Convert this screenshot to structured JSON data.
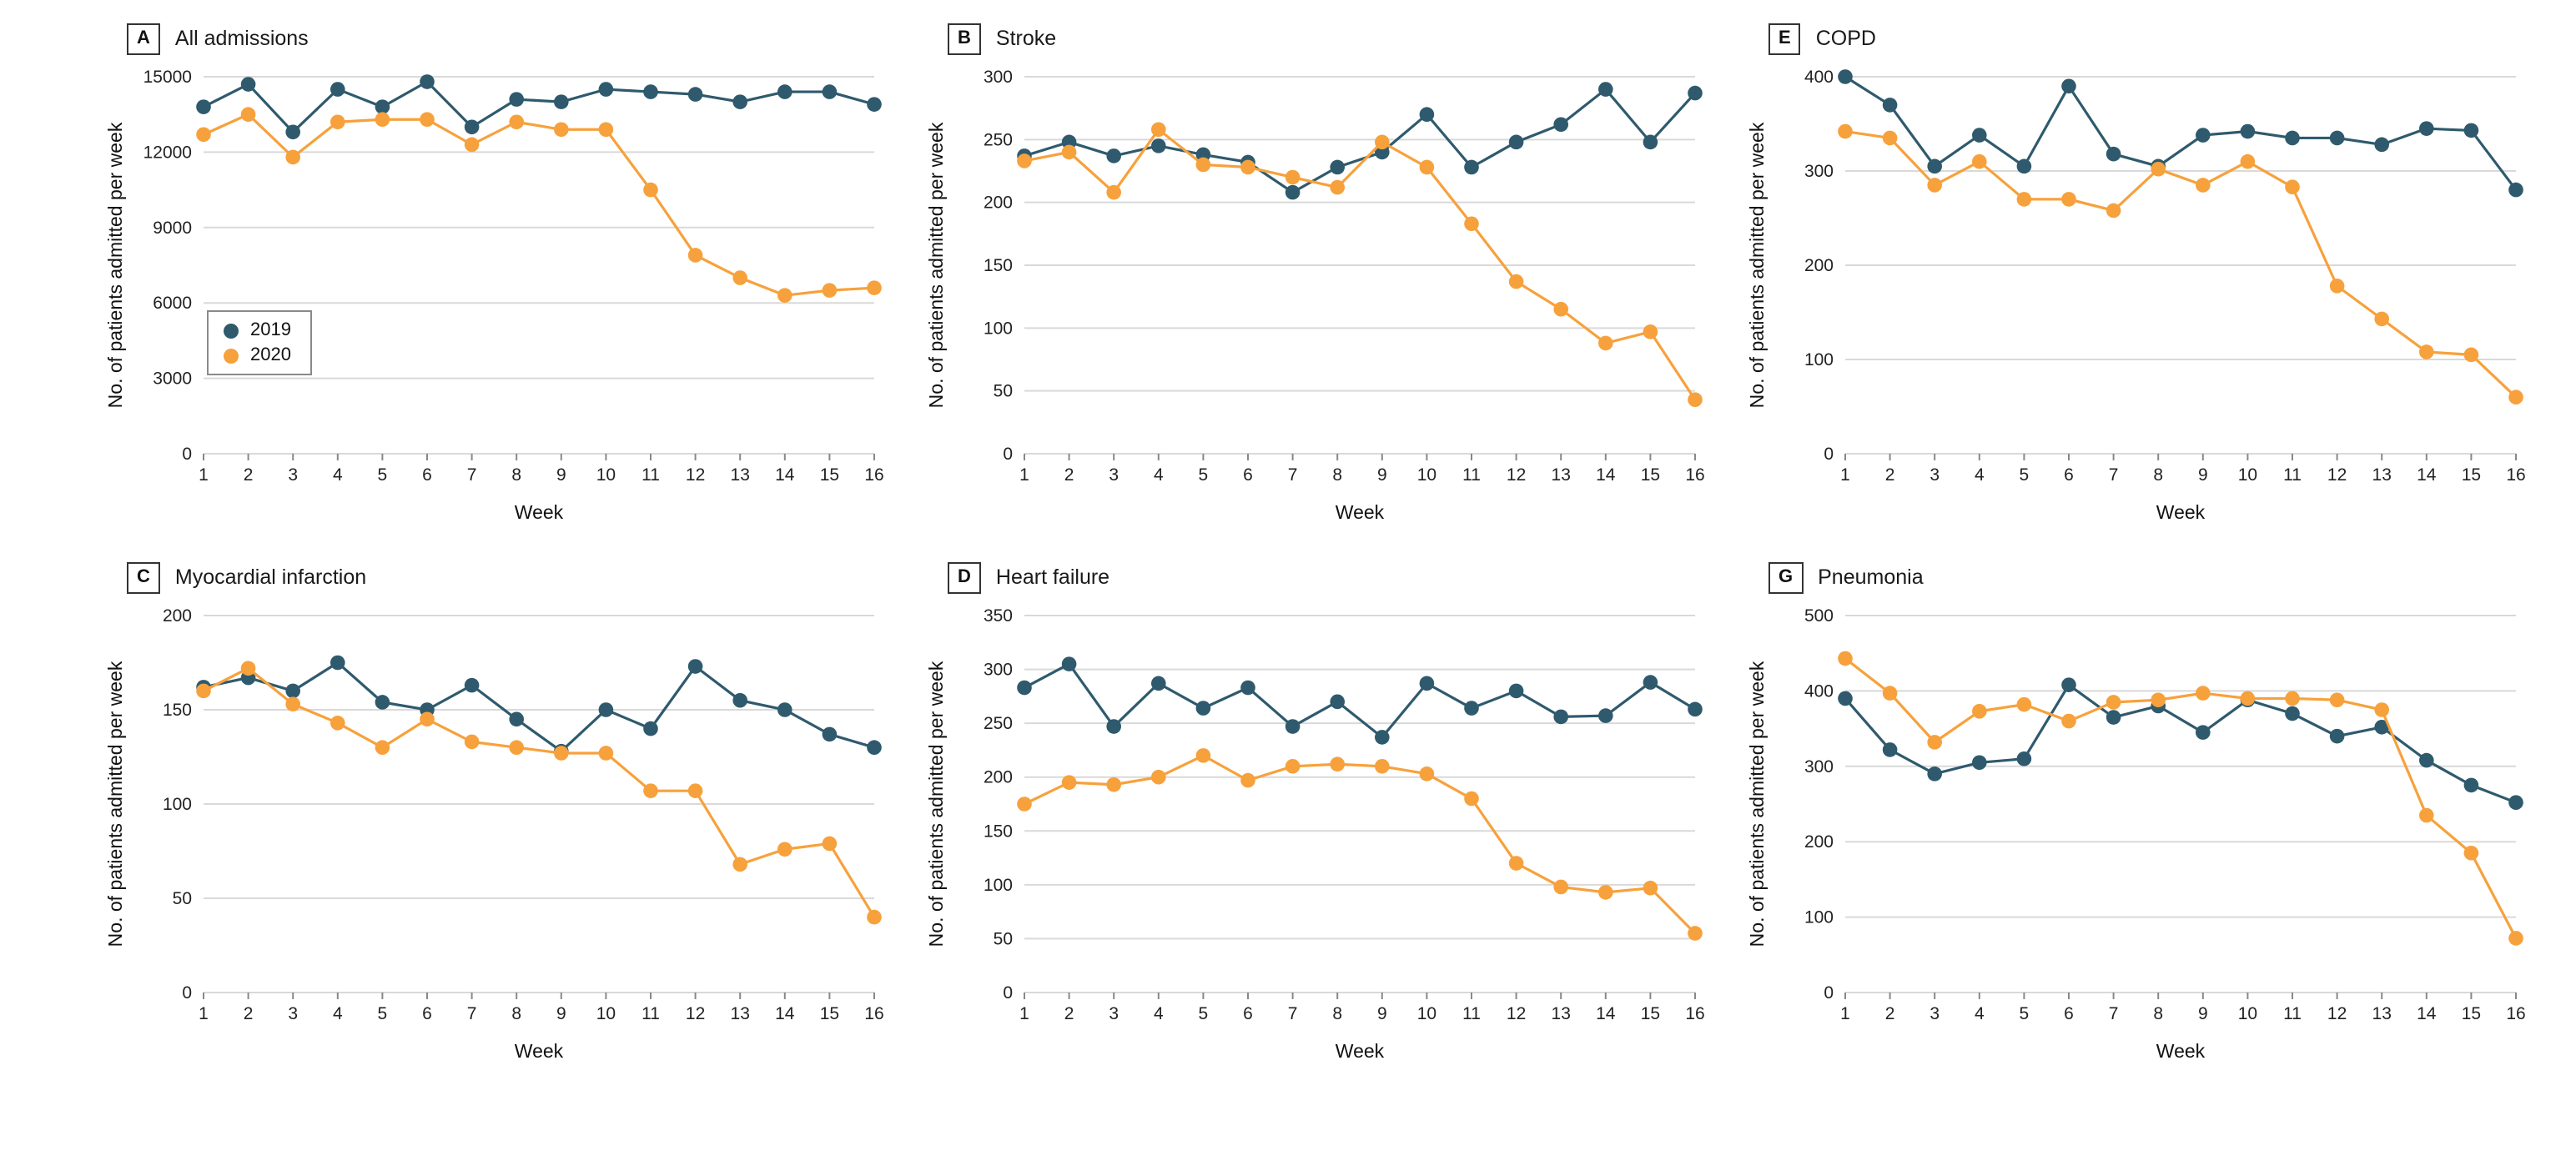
{
  "figure": {
    "x_label": "Week",
    "y_label": "No. of patients admitted per week",
    "colors": {
      "2019": "#2F5A6D",
      "2020": "#F7A13C"
    },
    "grid_color": "#d9d9d9",
    "legend": {
      "entries": [
        {
          "label": "2019"
        },
        {
          "label": "2020"
        }
      ],
      "position": "inside-left panel A"
    }
  },
  "chart_data": [
    {
      "type": "line",
      "panel": "A",
      "title": "All admissions",
      "x": [
        1,
        2,
        3,
        4,
        5,
        6,
        7,
        8,
        9,
        10,
        11,
        12,
        13,
        14,
        15,
        16
      ],
      "xlabel": "Week",
      "ylabel": "No. of patients admitted per week",
      "ylim": [
        0,
        15000
      ],
      "yticks": [
        0,
        3000,
        6000,
        9000,
        12000,
        15000
      ],
      "legend": true,
      "series": [
        {
          "name": "2019",
          "values": [
            13800,
            14700,
            12800,
            14500,
            13800,
            14800,
            13000,
            14100,
            14000,
            14500,
            14400,
            14300,
            14000,
            14400,
            14400,
            13900
          ]
        },
        {
          "name": "2020",
          "values": [
            12700,
            13500,
            11800,
            13200,
            13300,
            13300,
            12300,
            13200,
            12900,
            12900,
            10500,
            7900,
            7000,
            6300,
            6500,
            6600
          ]
        }
      ]
    },
    {
      "type": "line",
      "panel": "B",
      "title": "Stroke",
      "x": [
        1,
        2,
        3,
        4,
        5,
        6,
        7,
        8,
        9,
        10,
        11,
        12,
        13,
        14,
        15,
        16
      ],
      "xlabel": "Week",
      "ylabel": "No. of patients admitted per week",
      "ylim": [
        0,
        300
      ],
      "yticks": [
        0,
        50,
        100,
        150,
        200,
        250,
        300
      ],
      "legend": false,
      "series": [
        {
          "name": "2019",
          "values": [
            237,
            248,
            237,
            245,
            238,
            232,
            208,
            228,
            240,
            270,
            228,
            248,
            262,
            290,
            248,
            287
          ]
        },
        {
          "name": "2020",
          "values": [
            233,
            240,
            208,
            258,
            230,
            228,
            220,
            212,
            248,
            228,
            183,
            137,
            115,
            88,
            97,
            43
          ]
        }
      ]
    },
    {
      "type": "line",
      "panel": "E",
      "title": "COPD",
      "x": [
        1,
        2,
        3,
        4,
        5,
        6,
        7,
        8,
        9,
        10,
        11,
        12,
        13,
        14,
        15,
        16
      ],
      "xlabel": "Week",
      "ylabel": "No. of patients admitted per week",
      "ylim": [
        0,
        400
      ],
      "yticks": [
        0,
        100,
        200,
        300,
        400
      ],
      "legend": false,
      "series": [
        {
          "name": "2019",
          "values": [
            400,
            370,
            305,
            338,
            305,
            390,
            318,
            305,
            338,
            342,
            335,
            335,
            328,
            345,
            343,
            280
          ]
        },
        {
          "name": "2020",
          "values": [
            342,
            335,
            285,
            310,
            270,
            270,
            258,
            302,
            285,
            310,
            283,
            178,
            143,
            108,
            105,
            60
          ]
        }
      ]
    },
    {
      "type": "line",
      "panel": "C",
      "title": "Myocardial infarction",
      "x": [
        1,
        2,
        3,
        4,
        5,
        6,
        7,
        8,
        9,
        10,
        11,
        12,
        13,
        14,
        15,
        16
      ],
      "xlabel": "Week",
      "ylabel": "No. of patients admitted per week",
      "ylim": [
        0,
        200
      ],
      "yticks": [
        0,
        50,
        100,
        150,
        200
      ],
      "legend": false,
      "series": [
        {
          "name": "2019",
          "values": [
            162,
            167,
            160,
            175,
            154,
            150,
            163,
            145,
            128,
            150,
            140,
            173,
            155,
            150,
            137,
            130
          ]
        },
        {
          "name": "2020",
          "values": [
            160,
            172,
            153,
            143,
            130,
            145,
            133,
            130,
            127,
            127,
            107,
            107,
            68,
            76,
            79,
            40
          ]
        }
      ]
    },
    {
      "type": "line",
      "panel": "D",
      "title": "Heart failure",
      "x": [
        1,
        2,
        3,
        4,
        5,
        6,
        7,
        8,
        9,
        10,
        11,
        12,
        13,
        14,
        15,
        16
      ],
      "xlabel": "Week",
      "ylabel": "No. of patients admitted per week",
      "ylim": [
        0,
        350
      ],
      "yticks": [
        0,
        50,
        100,
        150,
        200,
        250,
        300,
        350
      ],
      "legend": false,
      "series": [
        {
          "name": "2019",
          "values": [
            283,
            305,
            247,
            287,
            264,
            283,
            247,
            270,
            237,
            287,
            264,
            280,
            256,
            257,
            288,
            263
          ]
        },
        {
          "name": "2020",
          "values": [
            175,
            195,
            193,
            200,
            220,
            197,
            210,
            212,
            210,
            203,
            180,
            120,
            98,
            93,
            97,
            55
          ]
        }
      ]
    },
    {
      "type": "line",
      "panel": "G",
      "title": "Pneumonia",
      "x": [
        1,
        2,
        3,
        4,
        5,
        6,
        7,
        8,
        9,
        10,
        11,
        12,
        13,
        14,
        15,
        16
      ],
      "xlabel": "Week",
      "ylabel": "No. of patients admitted per week",
      "ylim": [
        0,
        500
      ],
      "yticks": [
        0,
        100,
        200,
        300,
        400,
        500
      ],
      "legend": false,
      "series": [
        {
          "name": "2019",
          "values": [
            390,
            322,
            290,
            305,
            310,
            408,
            365,
            380,
            345,
            388,
            370,
            340,
            352,
            308,
            275,
            252
          ]
        },
        {
          "name": "2020",
          "values": [
            443,
            397,
            332,
            373,
            382,
            360,
            385,
            388,
            397,
            390,
            390,
            388,
            375,
            235,
            185,
            72
          ]
        }
      ]
    }
  ]
}
